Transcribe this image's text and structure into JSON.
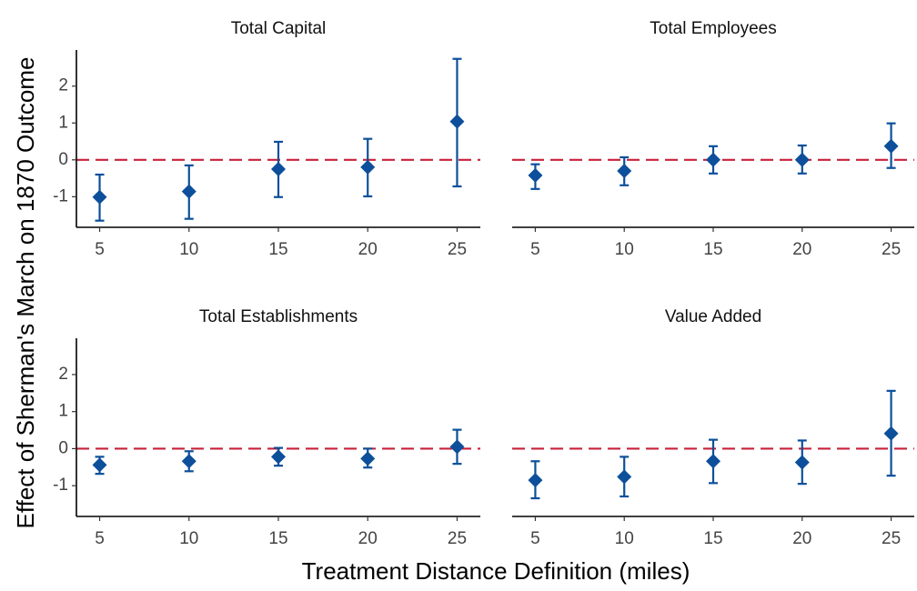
{
  "chart_data": {
    "type": "pointrange",
    "x_label": "Treatment Distance Definition (miles)",
    "y_label": "Effect of Sherman's March on 1870 Outcome",
    "x": [
      5,
      10,
      15,
      20,
      25
    ],
    "xlim": [
      3.7,
      26.3
    ],
    "xticks": [
      5,
      10,
      15,
      20,
      25
    ],
    "ylim": [
      -1.83,
      2.98
    ],
    "yticks": [
      -1,
      0,
      1,
      2
    ],
    "color": "#0d4f9a",
    "reference_line": {
      "value": 0,
      "color": "#c8203a"
    },
    "panels": [
      {
        "title": "Total Capital",
        "values": [
          -1.01,
          -0.86,
          -0.25,
          -0.2,
          1.04
        ],
        "lower": [
          -1.65,
          -1.6,
          -1.01,
          -0.99,
          -0.72
        ],
        "upper": [
          -0.4,
          -0.15,
          0.49,
          0.57,
          2.74
        ]
      },
      {
        "title": "Total Employees",
        "values": [
          -0.42,
          -0.3,
          0,
          0,
          0.37
        ],
        "lower": [
          -0.79,
          -0.69,
          -0.37,
          -0.37,
          -0.22
        ],
        "upper": [
          -0.12,
          0.07,
          0.37,
          0.39,
          0.99
        ]
      },
      {
        "title": "Total Establishments",
        "values": [
          -0.44,
          -0.34,
          -0.22,
          -0.27,
          0.05
        ],
        "lower": [
          -0.68,
          -0.61,
          -0.46,
          -0.51,
          -0.41
        ],
        "upper": [
          -0.22,
          -0.07,
          0.02,
          0,
          0.51
        ]
      },
      {
        "title": "Value Added",
        "values": [
          -0.85,
          -0.76,
          -0.34,
          -0.37,
          0.41
        ],
        "lower": [
          -1.34,
          -1.29,
          -0.93,
          -0.95,
          -0.73
        ],
        "upper": [
          -0.34,
          -0.22,
          0.24,
          0.22,
          1.56
        ]
      }
    ]
  }
}
